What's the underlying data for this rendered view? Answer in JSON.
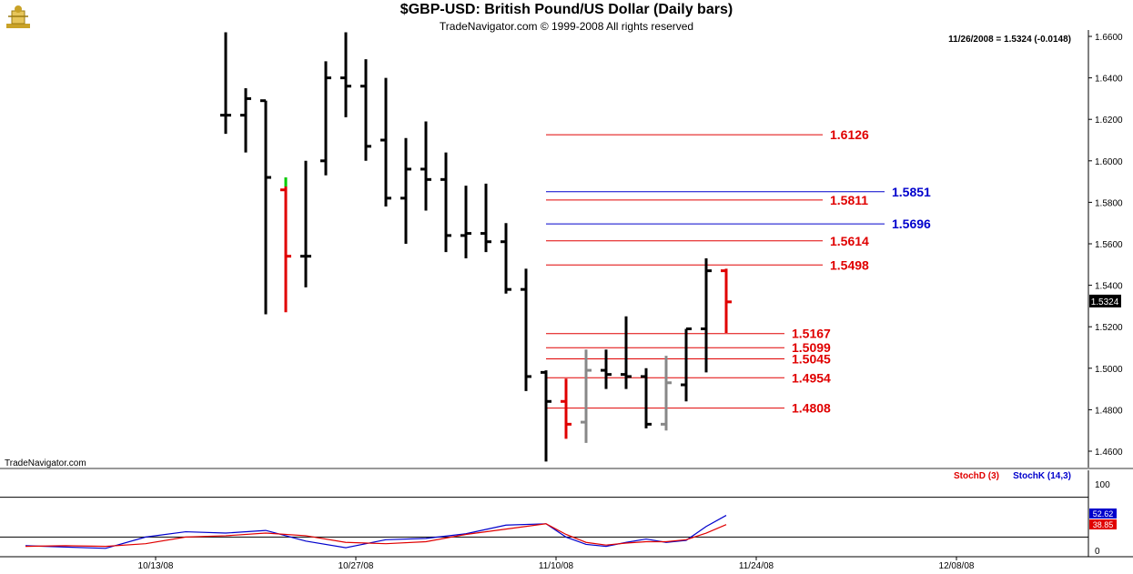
{
  "header": {
    "title": "$GBP-USD:  British Pound/US Dollar  (Daily bars)",
    "subtitle": "TradeNavigator.com © 1999-2008 All rights reserved",
    "last_price_readout": "11/26/2008 = 1.5324 (-0.0148)",
    "watermark": "TradeNavigator.com"
  },
  "colors": {
    "up_bar": "#000000",
    "down_bar": "#e00000",
    "neutral_bar": "#888888",
    "red_level": "#e00000",
    "blue_level": "#0000cc",
    "stoch_d": "#e00000",
    "stoch_k": "#0000cc",
    "price_tag_bg": "#000000",
    "grid": "#000000"
  },
  "chart_data": [
    {
      "type": "ohlc",
      "ylim": [
        1.44,
        1.665
      ],
      "y_ticks": [
        "1.6600",
        "1.6400",
        "1.6200",
        "1.6000",
        "1.5800",
        "1.5600",
        "1.5400",
        "1.5200",
        "1.5000",
        "1.4800",
        "1.4600"
      ],
      "x_ticks": [
        "10/13/08",
        "10/27/08",
        "11/10/08",
        "11/24/08",
        "12/08/08"
      ],
      "x_tick_days": [
        4,
        14,
        24,
        34,
        44
      ],
      "current_price": "1.5324",
      "bars": [
        {
          "d": 0,
          "o": 1.622,
          "h": 1.662,
          "l": 1.613,
          "c": 1.622,
          "col": "black"
        },
        {
          "d": 1,
          "o": 1.622,
          "h": 1.635,
          "l": 1.604,
          "c": 1.63,
          "col": "black"
        },
        {
          "d": 2,
          "o": 1.629,
          "h": 1.629,
          "l": 1.526,
          "c": 1.592,
          "col": "black"
        },
        {
          "d": 3,
          "o": 1.586,
          "h": 1.592,
          "l": 1.527,
          "c": 1.554,
          "col": "red",
          "tip": "green"
        },
        {
          "d": 4,
          "o": 1.554,
          "h": 1.6,
          "l": 1.539,
          "c": 1.554,
          "col": "black"
        },
        {
          "d": 5,
          "o": 1.6,
          "h": 1.648,
          "l": 1.593,
          "c": 1.64,
          "col": "black"
        },
        {
          "d": 6,
          "o": 1.64,
          "h": 1.662,
          "l": 1.621,
          "c": 1.636,
          "col": "black"
        },
        {
          "d": 7,
          "o": 1.636,
          "h": 1.649,
          "l": 1.6,
          "c": 1.607,
          "col": "black"
        },
        {
          "d": 8,
          "o": 1.61,
          "h": 1.64,
          "l": 1.578,
          "c": 1.582,
          "col": "black"
        },
        {
          "d": 9,
          "o": 1.582,
          "h": 1.611,
          "l": 1.56,
          "c": 1.596,
          "col": "black"
        },
        {
          "d": 10,
          "o": 1.596,
          "h": 1.619,
          "l": 1.576,
          "c": 1.591,
          "col": "black"
        },
        {
          "d": 11,
          "o": 1.591,
          "h": 1.604,
          "l": 1.556,
          "c": 1.564,
          "col": "black"
        },
        {
          "d": 12,
          "o": 1.564,
          "h": 1.588,
          "l": 1.553,
          "c": 1.565,
          "col": "black"
        },
        {
          "d": 13,
          "o": 1.565,
          "h": 1.589,
          "l": 1.556,
          "c": 1.561,
          "col": "black"
        },
        {
          "d": 14,
          "o": 1.561,
          "h": 1.57,
          "l": 1.536,
          "c": 1.538,
          "col": "black"
        },
        {
          "d": 15,
          "o": 1.538,
          "h": 1.548,
          "l": 1.489,
          "c": 1.496,
          "col": "black"
        },
        {
          "d": 16,
          "o": 1.498,
          "h": 1.499,
          "l": 1.455,
          "c": 1.484,
          "col": "black"
        },
        {
          "d": 17,
          "o": 1.484,
          "h": 1.495,
          "l": 1.466,
          "c": 1.473,
          "col": "red"
        },
        {
          "d": 18,
          "o": 1.474,
          "h": 1.509,
          "l": 1.464,
          "c": 1.499,
          "col": "gray"
        },
        {
          "d": 19,
          "o": 1.499,
          "h": 1.509,
          "l": 1.49,
          "c": 1.497,
          "col": "black"
        },
        {
          "d": 20,
          "o": 1.497,
          "h": 1.525,
          "l": 1.49,
          "c": 1.496,
          "col": "black"
        },
        {
          "d": 21,
          "o": 1.496,
          "h": 1.5,
          "l": 1.471,
          "c": 1.473,
          "col": "black"
        },
        {
          "d": 22,
          "o": 1.473,
          "h": 1.506,
          "l": 1.47,
          "c": 1.493,
          "col": "gray"
        },
        {
          "d": 23,
          "o": 1.492,
          "h": 1.519,
          "l": 1.484,
          "c": 1.519,
          "col": "black"
        },
        {
          "d": 24,
          "o": 1.519,
          "h": 1.553,
          "l": 1.498,
          "c": 1.547,
          "col": "black"
        },
        {
          "d": 25,
          "o": 1.547,
          "h": 1.548,
          "l": 1.517,
          "c": 1.532,
          "col": "red"
        }
      ],
      "levels": [
        {
          "value": 1.6126,
          "label": "1.6126",
          "color": "red",
          "x_start_day": 16
        },
        {
          "value": 1.5851,
          "label": "1.5851",
          "color": "blue",
          "x_start_day": 16
        },
        {
          "value": 1.5811,
          "label": "1.5811",
          "color": "red",
          "x_start_day": 16
        },
        {
          "value": 1.5696,
          "label": "1.5696",
          "color": "blue",
          "x_start_day": 16
        },
        {
          "value": 1.5614,
          "label": "1.5614",
          "color": "red",
          "x_start_day": 16
        },
        {
          "value": 1.5498,
          "label": "1.5498",
          "color": "red",
          "x_start_day": 16
        },
        {
          "value": 1.5167,
          "label": "1.5167",
          "color": "red",
          "x_start_day": 16
        },
        {
          "value": 1.5099,
          "label": "1.5099",
          "color": "red",
          "x_start_day": 16
        },
        {
          "value": 1.5045,
          "label": "1.5045",
          "color": "red",
          "x_start_day": 16
        },
        {
          "value": 1.4954,
          "label": "1.4954",
          "color": "red",
          "x_start_day": 16
        },
        {
          "value": 1.4808,
          "label": "1.4808",
          "color": "red",
          "x_start_day": 16
        }
      ]
    },
    {
      "type": "line",
      "title": "",
      "ylim": [
        0,
        100
      ],
      "y_ticks": [
        "100",
        "0"
      ],
      "reference_lines": [
        80,
        20
      ],
      "legend": [
        {
          "name": "StochD (3)",
          "color": "red"
        },
        {
          "name": "StochK (14,3)",
          "color": "blue"
        }
      ],
      "last_values": {
        "k": "52.62",
        "d": "38.85"
      },
      "series": [
        {
          "name": "StochK (14,3)",
          "color": "blue",
          "x": [
            -10,
            -8,
            -6,
            -4,
            -2,
            0,
            2,
            4,
            6,
            8,
            10,
            12,
            14,
            16,
            17,
            18,
            19,
            20,
            21,
            22,
            23,
            24,
            25
          ],
          "values": [
            7,
            5,
            3,
            20,
            28,
            26,
            30,
            14,
            4,
            16,
            18,
            25,
            38,
            40,
            20,
            9,
            6,
            12,
            17,
            12,
            15,
            36,
            52.62
          ]
        },
        {
          "name": "StochD (3)",
          "color": "red",
          "x": [
            -10,
            -8,
            -6,
            -4,
            -2,
            0,
            2,
            4,
            6,
            8,
            10,
            12,
            14,
            16,
            17,
            18,
            19,
            20,
            21,
            22,
            23,
            24,
            25
          ],
          "values": [
            6,
            7,
            6,
            10,
            20,
            22,
            26,
            22,
            12,
            10,
            13,
            24,
            32,
            40,
            24,
            12,
            8,
            11,
            13,
            13,
            16,
            26,
            38.85
          ]
        }
      ]
    }
  ]
}
